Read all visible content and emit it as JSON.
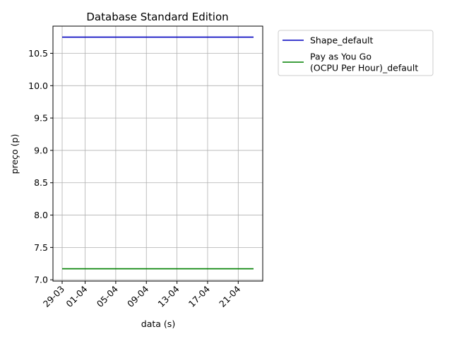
{
  "chart_data": {
    "type": "line",
    "title": "Database Standard Edition",
    "xlabel": "data (s)",
    "ylabel": "preço (p)",
    "x_ticks": [
      "29-03",
      "01-04",
      "05-04",
      "09-04",
      "13-04",
      "17-04",
      "21-04"
    ],
    "x_tick_days": [
      0,
      3,
      7,
      11,
      15,
      19,
      23
    ],
    "xlim": [
      -1.2,
      26.2
    ],
    "ylim": [
      6.98,
      10.92
    ],
    "y_ticks": [
      "7.0",
      "7.5",
      "8.0",
      "8.5",
      "9.0",
      "9.5",
      "10.0",
      "10.5"
    ],
    "y_tick_values": [
      7.0,
      7.5,
      8.0,
      8.5,
      9.0,
      9.5,
      10.0,
      10.5
    ],
    "grid": true,
    "legend_position": "outside-top-right",
    "series": [
      {
        "name": "Shape_default",
        "legend_lines": [
          "Shape_default"
        ],
        "color": "#0000bf",
        "x": [
          0,
          25
        ],
        "values": [
          10.75,
          10.75
        ]
      },
      {
        "name": "Pay as You Go (OCPU Per Hour)_default",
        "legend_lines": [
          "Pay as You Go",
          "(OCPU Per Hour)_default"
        ],
        "color": "#008000",
        "x": [
          0,
          25
        ],
        "values": [
          7.17,
          7.17
        ]
      }
    ]
  }
}
